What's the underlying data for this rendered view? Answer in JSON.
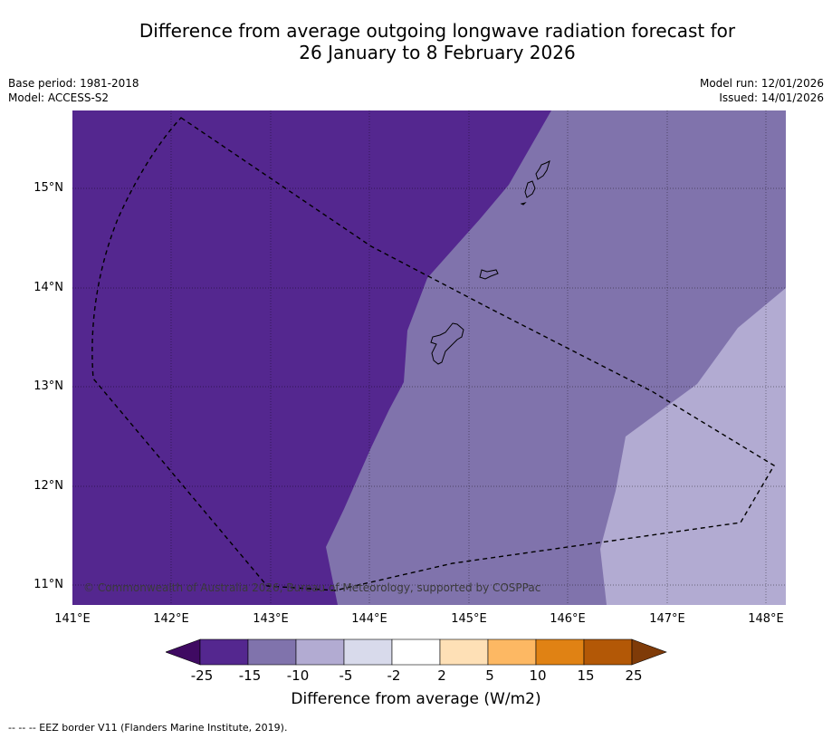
{
  "title_line1": "Difference from average outgoing longwave radiation forecast for",
  "title_line2": "26 January to 8 February 2026",
  "base_period": "Base period: 1981-2018",
  "model": "Model: ACCESS-S2",
  "model_run": "Model run: 12/01/2026",
  "issued": "Issued: 14/01/2026",
  "copyright": "© Commonwealth of Australia 2026, Bureau of Meteorology, supported by COSPPac",
  "lat_labels": [
    "15°N",
    "14°N",
    "13°N",
    "12°N",
    "11°N"
  ],
  "lon_labels": [
    "141°E",
    "142°E",
    "143°E",
    "144°E",
    "145°E",
    "146°E",
    "147°E",
    "148°E"
  ],
  "colorbar": {
    "ticks": [
      "-25",
      "-15",
      "-10",
      "-5",
      "-2",
      "2",
      "5",
      "10",
      "15",
      "25"
    ],
    "colors": [
      "#3f0a62",
      "#54278f",
      "#8073ac",
      "#b2abd2",
      "#d8daeb",
      "#ffffff",
      "#fee0b6",
      "#fdb863",
      "#e08214",
      "#b35806",
      "#7f3b08"
    ],
    "label": "Difference from average (W/m2)"
  },
  "legend_eez": "-- -- -- EEZ border V11 (Flanders Marine Institute, 2019)."
}
